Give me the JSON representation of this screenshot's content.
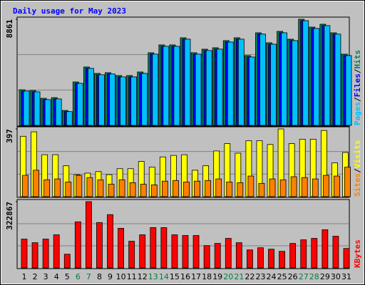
{
  "title": "Daily usage for May 2023",
  "separator": "/",
  "categories": [
    "1",
    "2",
    "3",
    "4",
    "5",
    "6",
    "7",
    "8",
    "9",
    "10",
    "11",
    "12",
    "13",
    "14",
    "15",
    "16",
    "17",
    "18",
    "19",
    "20",
    "21",
    "22",
    "23",
    "24",
    "25",
    "26",
    "27",
    "28",
    "29",
    "30",
    "31"
  ],
  "category_colors": [
    "#000000",
    "#000000",
    "#000000",
    "#000000",
    "#000000",
    "#008040",
    "#008040",
    "#000000",
    "#000000",
    "#000000",
    "#000000",
    "#000000",
    "#008040",
    "#008040",
    "#000000",
    "#000000",
    "#000000",
    "#000000",
    "#000000",
    "#008040",
    "#008040",
    "#000000",
    "#000000",
    "#000000",
    "#000000",
    "#000000",
    "#008040",
    "#008040",
    "#000000",
    "#000000",
    "#000000"
  ],
  "chart_data": [
    {
      "type": "bar",
      "ylim": [
        0,
        8861
      ],
      "yticks": [
        8861
      ],
      "series": [
        {
          "name": "Hits",
          "color": "#00805c",
          "values": [
            2974,
            2914,
            2260,
            2319,
            1249,
            3628,
            4877,
            4341,
            4401,
            4163,
            4163,
            4460,
            6066,
            6720,
            6720,
            7315,
            6066,
            6363,
            6482,
            7077,
            7315,
            5828,
            7731,
            6899,
            7850,
            7196,
            8861,
            8207,
            8445,
            7731,
            5947
          ]
        },
        {
          "name": "Files",
          "color": "#0000ff",
          "values": [
            2860,
            2800,
            2150,
            2210,
            1150,
            3510,
            4760,
            4230,
            4290,
            4050,
            4050,
            4340,
            5950,
            6600,
            6600,
            7200,
            5950,
            6250,
            6370,
            6960,
            7200,
            5710,
            7620,
            6780,
            7730,
            7080,
            8740,
            8090,
            8330,
            7620,
            5830
          ]
        },
        {
          "name": "Pages",
          "color": "#00c0ff",
          "values": [
            2860,
            2800,
            2150,
            2210,
            1150,
            3510,
            4760,
            4230,
            4290,
            4050,
            4050,
            4340,
            5950,
            6600,
            6600,
            7200,
            5950,
            6250,
            6370,
            6960,
            7200,
            5710,
            7620,
            6780,
            7730,
            7080,
            8740,
            8090,
            8330,
            7620,
            5830
          ]
        }
      ]
    },
    {
      "type": "bar",
      "ylim": [
        0,
        397
      ],
      "yticks": [
        397
      ],
      "series": [
        {
          "name": "Visits",
          "color": "#ffff00",
          "values": [
            354,
            380,
            246,
            246,
            181,
            129,
            138,
            147,
            129,
            164,
            164,
            207,
            173,
            233,
            242,
            246,
            155,
            181,
            268,
            311,
            255,
            328,
            328,
            306,
            397,
            311,
            337,
            337,
            388,
            198,
            259
          ]
        },
        {
          "name": "Sites",
          "color": "#ff8000",
          "values": [
            125,
            155,
            99,
            104,
            86,
            125,
            112,
            99,
            73,
            99,
            82,
            73,
            69,
            91,
            95,
            86,
            91,
            95,
            104,
            86,
            82,
            121,
            78,
            104,
            99,
            117,
            112,
            104,
            125,
            121,
            173
          ]
        }
      ]
    },
    {
      "type": "bar",
      "ylim": [
        0,
        322867
      ],
      "yticks": [
        322867
      ],
      "series": [
        {
          "name": "KBytes",
          "color": "#ff0000",
          "values": [
            140360,
            122815,
            140360,
            161414,
            66671,
            224576,
            322867,
            221067,
            259666,
            192995,
            129833,
            161414,
            196504,
            196504,
            161414,
            157905,
            157905,
            108779,
            119306,
            143869,
            122815,
            87725,
            98252,
            91234,
            80707,
            119306,
            136851,
            143869,
            185977,
            154396,
            94743
          ]
        }
      ]
    }
  ]
}
